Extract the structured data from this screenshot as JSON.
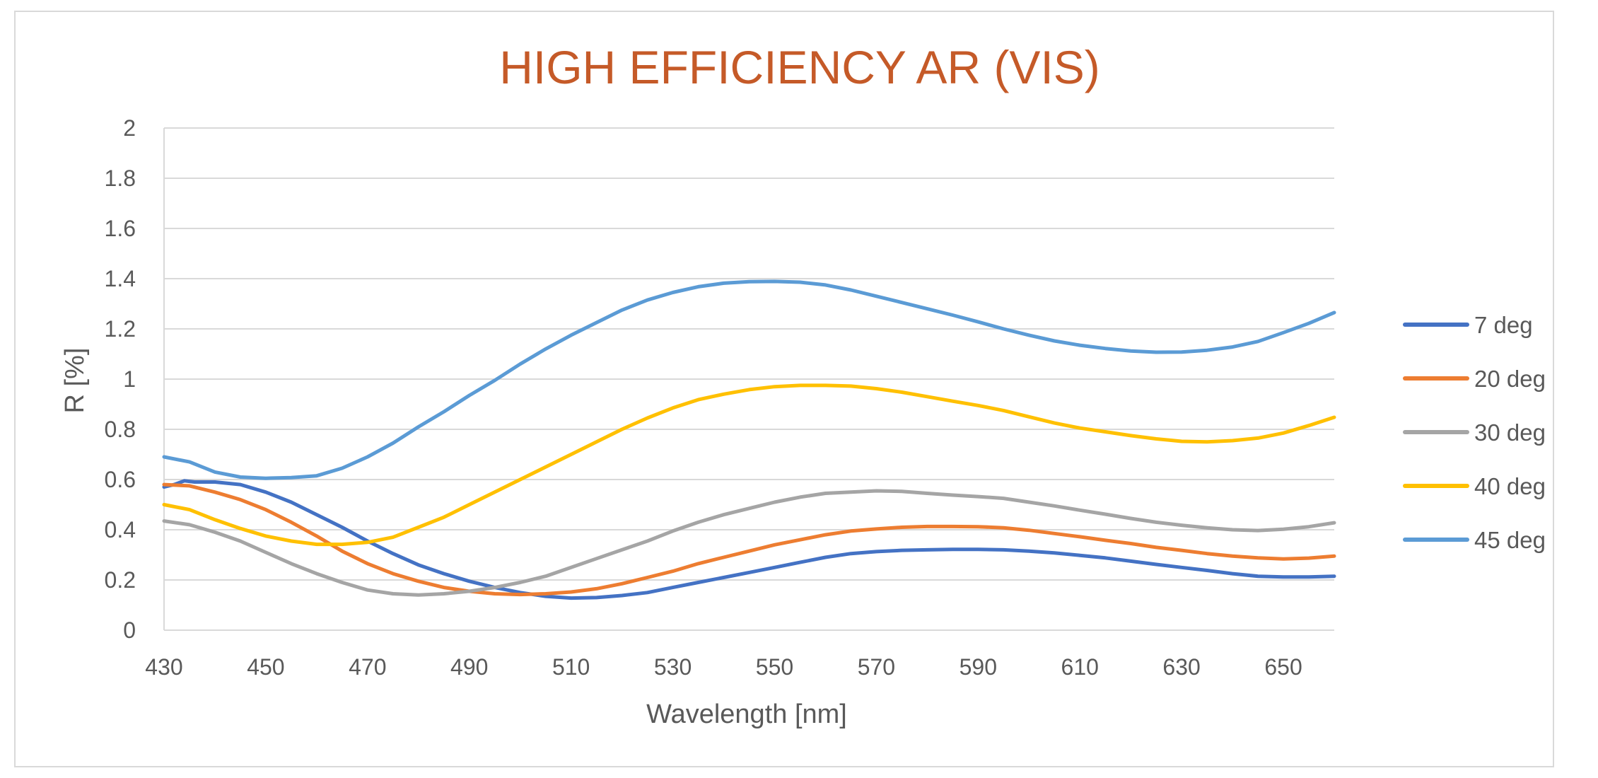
{
  "chart_data": {
    "type": "line",
    "title": "HIGH EFFICIENCY AR  (VIS)",
    "xlabel": "Wavelength [nm]",
    "ylabel": "R [%]",
    "xlim": [
      430,
      660
    ],
    "ylim": [
      0,
      2
    ],
    "x_ticks": [
      "430",
      "450",
      "470",
      "490",
      "510",
      "530",
      "550",
      "570",
      "590",
      "610",
      "630",
      "650"
    ],
    "y_ticks": [
      "0",
      "0.2",
      "0.4",
      "0.6",
      "0.8",
      "1",
      "1.2",
      "1.4",
      "1.6",
      "1.8",
      "2"
    ],
    "grid": "horizontal",
    "legend_position": "right",
    "series": [
      {
        "name": "7 deg",
        "color": "#4472c4",
        "x": [
          430,
          432,
          434,
          436,
          440,
          445,
          450,
          455,
          460,
          465,
          470,
          475,
          480,
          485,
          490,
          495,
          500,
          505,
          510,
          515,
          520,
          525,
          530,
          535,
          540,
          545,
          550,
          555,
          560,
          565,
          570,
          575,
          580,
          585,
          590,
          595,
          600,
          605,
          610,
          615,
          620,
          625,
          630,
          635,
          640,
          645,
          650,
          655,
          660
        ],
        "y": [
          0.57,
          0.58,
          0.595,
          0.59,
          0.59,
          0.58,
          0.55,
          0.51,
          0.46,
          0.41,
          0.355,
          0.305,
          0.26,
          0.225,
          0.195,
          0.17,
          0.15,
          0.135,
          0.128,
          0.13,
          0.138,
          0.15,
          0.17,
          0.19,
          0.21,
          0.23,
          0.25,
          0.27,
          0.29,
          0.305,
          0.313,
          0.318,
          0.32,
          0.322,
          0.322,
          0.32,
          0.315,
          0.308,
          0.298,
          0.288,
          0.275,
          0.262,
          0.25,
          0.238,
          0.225,
          0.215,
          0.212,
          0.212,
          0.215
        ]
      },
      {
        "name": "20 deg",
        "color": "#ed7d31",
        "x": [
          430,
          435,
          440,
          445,
          450,
          455,
          460,
          465,
          470,
          475,
          480,
          485,
          490,
          495,
          500,
          505,
          510,
          515,
          520,
          525,
          530,
          535,
          540,
          545,
          550,
          555,
          560,
          565,
          570,
          575,
          580,
          585,
          590,
          595,
          600,
          605,
          610,
          615,
          620,
          625,
          630,
          635,
          640,
          645,
          650,
          655,
          660
        ],
        "y": [
          0.58,
          0.575,
          0.55,
          0.52,
          0.48,
          0.43,
          0.375,
          0.315,
          0.265,
          0.225,
          0.195,
          0.17,
          0.155,
          0.145,
          0.142,
          0.145,
          0.152,
          0.165,
          0.185,
          0.21,
          0.235,
          0.265,
          0.29,
          0.315,
          0.34,
          0.36,
          0.38,
          0.395,
          0.403,
          0.41,
          0.413,
          0.413,
          0.412,
          0.408,
          0.398,
          0.385,
          0.372,
          0.358,
          0.345,
          0.33,
          0.318,
          0.305,
          0.295,
          0.288,
          0.284,
          0.287,
          0.295
        ]
      },
      {
        "name": "30 deg",
        "color": "#a5a5a5",
        "x": [
          430,
          435,
          440,
          445,
          450,
          455,
          460,
          465,
          470,
          475,
          480,
          485,
          490,
          495,
          500,
          505,
          510,
          515,
          520,
          525,
          530,
          535,
          540,
          545,
          550,
          555,
          560,
          565,
          570,
          575,
          580,
          585,
          590,
          595,
          600,
          605,
          610,
          615,
          620,
          625,
          630,
          635,
          640,
          645,
          650,
          655,
          660
        ],
        "y": [
          0.435,
          0.42,
          0.39,
          0.355,
          0.31,
          0.265,
          0.225,
          0.19,
          0.16,
          0.145,
          0.14,
          0.145,
          0.155,
          0.17,
          0.19,
          0.215,
          0.25,
          0.285,
          0.32,
          0.355,
          0.395,
          0.43,
          0.46,
          0.485,
          0.51,
          0.53,
          0.545,
          0.55,
          0.555,
          0.553,
          0.545,
          0.538,
          0.532,
          0.525,
          0.51,
          0.495,
          0.478,
          0.462,
          0.445,
          0.43,
          0.418,
          0.408,
          0.4,
          0.397,
          0.402,
          0.412,
          0.428
        ]
      },
      {
        "name": "40 deg",
        "color": "#ffc000",
        "x": [
          430,
          435,
          440,
          445,
          450,
          455,
          460,
          465,
          470,
          475,
          480,
          485,
          490,
          495,
          500,
          505,
          510,
          515,
          520,
          525,
          530,
          535,
          540,
          545,
          550,
          555,
          560,
          565,
          570,
          575,
          580,
          585,
          590,
          595,
          600,
          605,
          610,
          615,
          620,
          625,
          630,
          635,
          640,
          645,
          650,
          655,
          660
        ],
        "y": [
          0.5,
          0.48,
          0.44,
          0.405,
          0.375,
          0.355,
          0.342,
          0.342,
          0.35,
          0.37,
          0.41,
          0.45,
          0.5,
          0.55,
          0.6,
          0.65,
          0.7,
          0.75,
          0.8,
          0.845,
          0.885,
          0.918,
          0.94,
          0.958,
          0.97,
          0.975,
          0.975,
          0.972,
          0.962,
          0.948,
          0.93,
          0.912,
          0.895,
          0.875,
          0.85,
          0.825,
          0.805,
          0.79,
          0.775,
          0.762,
          0.752,
          0.75,
          0.755,
          0.765,
          0.785,
          0.815,
          0.848
        ]
      },
      {
        "name": "45 deg",
        "color": "#5b9bd5",
        "x": [
          430,
          435,
          440,
          445,
          450,
          455,
          460,
          465,
          470,
          475,
          480,
          485,
          490,
          495,
          500,
          505,
          510,
          515,
          520,
          525,
          530,
          535,
          540,
          545,
          550,
          555,
          560,
          565,
          570,
          575,
          580,
          585,
          590,
          595,
          600,
          605,
          610,
          615,
          620,
          625,
          630,
          635,
          640,
          645,
          650,
          655,
          660
        ],
        "y": [
          0.69,
          0.67,
          0.63,
          0.61,
          0.605,
          0.608,
          0.615,
          0.645,
          0.69,
          0.745,
          0.81,
          0.87,
          0.935,
          0.995,
          1.06,
          1.12,
          1.175,
          1.225,
          1.275,
          1.315,
          1.345,
          1.368,
          1.382,
          1.388,
          1.389,
          1.386,
          1.375,
          1.355,
          1.33,
          1.305,
          1.28,
          1.255,
          1.228,
          1.2,
          1.175,
          1.152,
          1.135,
          1.122,
          1.112,
          1.107,
          1.108,
          1.115,
          1.128,
          1.15,
          1.185,
          1.222,
          1.265
        ]
      }
    ]
  }
}
